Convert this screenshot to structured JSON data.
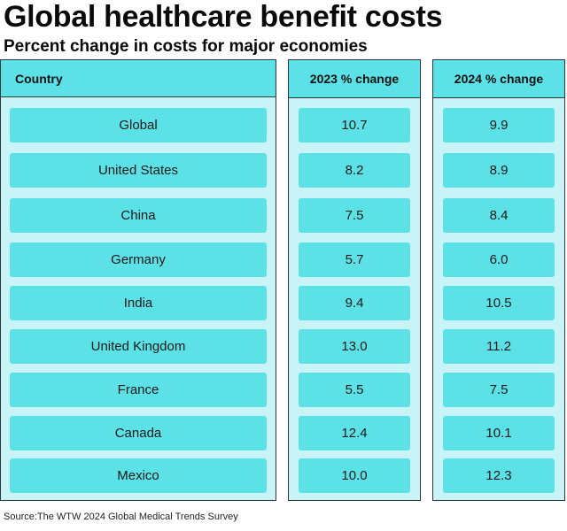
{
  "title": "Global healthcare benefit costs",
  "subtitle": "Percent change in costs for major economies",
  "source": "Source:The WTW 2024 Global Medical Trends Survey",
  "colors": {
    "header": "#5ce1e6",
    "panel": "#c8f3f7",
    "cell": "#5ce1e6"
  },
  "chart_data": {
    "type": "table",
    "columns": [
      "Country",
      "2023 % change",
      "2024 % change"
    ],
    "rows": [
      [
        "Global",
        "10.7",
        "9.9"
      ],
      [
        "United States",
        "8.2",
        "8.9"
      ],
      [
        "China",
        "7.5",
        "8.4"
      ],
      [
        "Germany",
        "5.7",
        "6.0"
      ],
      [
        "India",
        "9.4",
        "10.5"
      ],
      [
        "United Kingdom",
        "13.0",
        "11.2"
      ],
      [
        "France",
        "5.5",
        "7.5"
      ],
      [
        "Canada",
        "12.4",
        "10.1"
      ],
      [
        "Mexico",
        "10.0",
        "12.3"
      ]
    ]
  }
}
